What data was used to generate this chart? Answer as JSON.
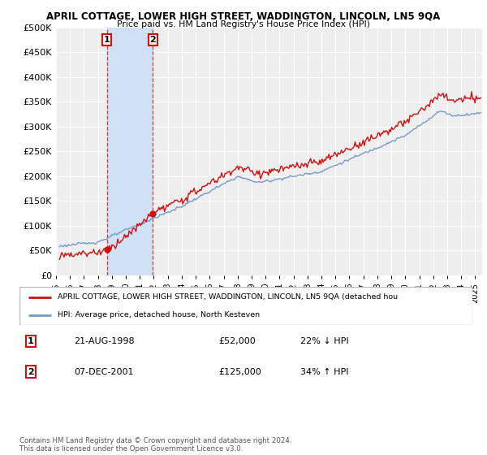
{
  "title": "APRIL COTTAGE, LOWER HIGH STREET, WADDINGTON, LINCOLN, LN5 9QA",
  "subtitle": "Price paid vs. HM Land Registry's House Price Index (HPI)",
  "ylim": [
    0,
    500000
  ],
  "yticks": [
    0,
    50000,
    100000,
    150000,
    200000,
    250000,
    300000,
    350000,
    400000,
    450000,
    500000
  ],
  "ytick_labels": [
    "£0",
    "£50K",
    "£100K",
    "£150K",
    "£200K",
    "£250K",
    "£300K",
    "£350K",
    "£400K",
    "£450K",
    "£500K"
  ],
  "transaction1": {
    "date_num": 1998.64,
    "price": 52000,
    "label": "1",
    "date_str": "21-AUG-1998",
    "pct": "22% ↓ HPI"
  },
  "transaction2": {
    "date_num": 2001.93,
    "price": 125000,
    "label": "2",
    "date_str": "07-DEC-2001",
    "pct": "34% ↑ HPI"
  },
  "hpi_color": "#7799cc",
  "price_color": "#cc1111",
  "legend_label_red": "APRIL COTTAGE, LOWER HIGH STREET, WADDINGTON, LINCOLN, LN5 9QA (detached hou",
  "legend_label_blue": "HPI: Average price, detached house, North Kesteven",
  "footnote": "Contains HM Land Registry data © Crown copyright and database right 2024.\nThis data is licensed under the Open Government Licence v3.0.",
  "bg_color": "#ffffff",
  "plot_bg_color": "#eeeeee",
  "shade_color": "#d0e0f5",
  "xstart": 1995.25,
  "xend": 2025.5,
  "xtick_years": [
    1995,
    1996,
    1997,
    1998,
    1999,
    2000,
    2001,
    2002,
    2003,
    2004,
    2005,
    2006,
    2007,
    2008,
    2009,
    2010,
    2011,
    2012,
    2013,
    2014,
    2015,
    2016,
    2017,
    2018,
    2019,
    2020,
    2021,
    2022,
    2023,
    2024,
    2025
  ]
}
